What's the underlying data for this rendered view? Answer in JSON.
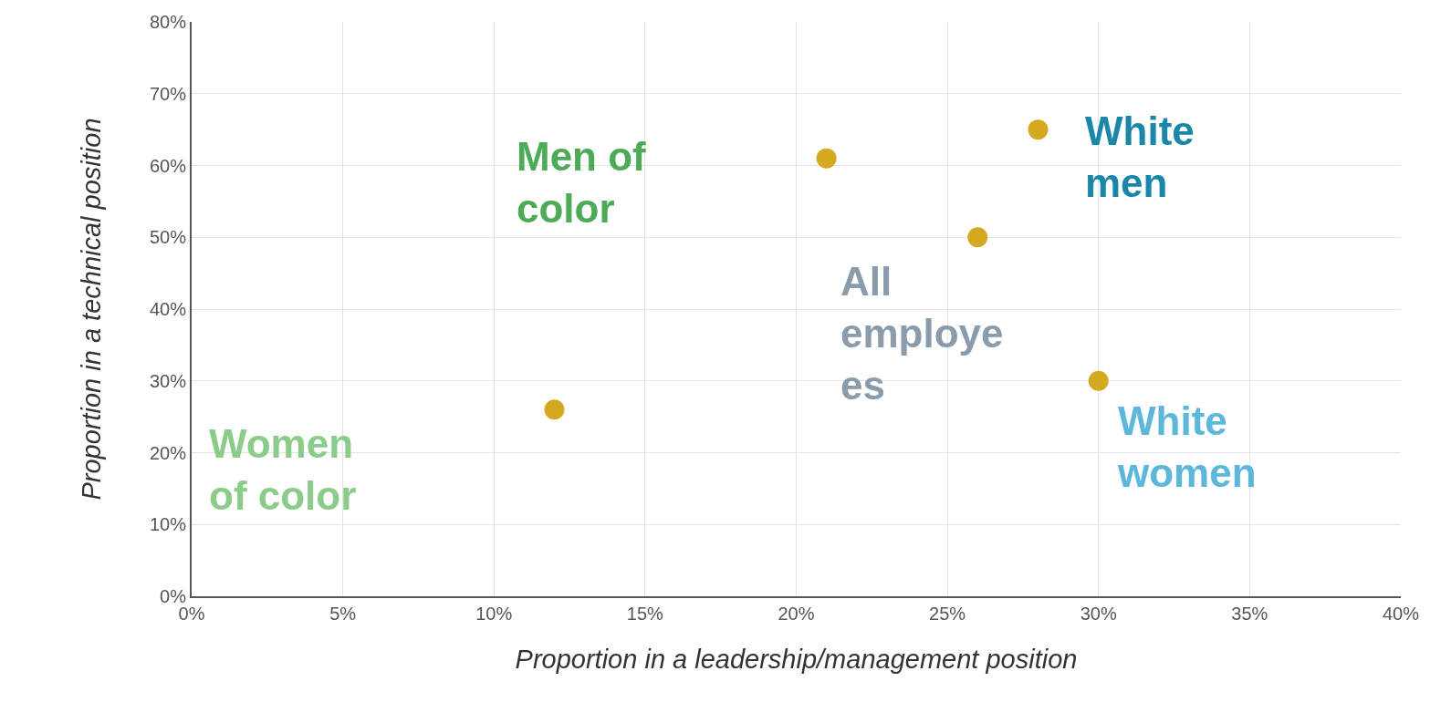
{
  "chart_data": {
    "type": "scatter",
    "xlabel": "Proportion in a leadership/management position",
    "ylabel": "Proportion in a technical position",
    "x": [
      12,
      21,
      26,
      28,
      30
    ],
    "series": [
      {
        "color": "#d4a820",
        "values": [
          26,
          61,
          50,
          65,
          30
        ]
      }
    ],
    "marker": "circle",
    "grid": true,
    "xlim": [
      0,
      40
    ],
    "xticks": [
      {
        "value": 0,
        "label": "0%"
      },
      {
        "value": 5,
        "label": "5%"
      },
      {
        "value": 10,
        "label": "10%"
      },
      {
        "value": 15,
        "label": "15%"
      },
      {
        "value": 20,
        "label": "20%"
      },
      {
        "value": 25,
        "label": "25%"
      },
      {
        "value": 30,
        "label": "30%"
      },
      {
        "value": 35,
        "label": "35%"
      },
      {
        "value": 40,
        "label": "40%"
      }
    ],
    "ylim": [
      0,
      80
    ],
    "yticks": [
      {
        "value": 0,
        "label": "0%"
      },
      {
        "value": 10,
        "label": "10%"
      },
      {
        "value": 20,
        "label": "20%"
      },
      {
        "value": 30,
        "label": "30%"
      },
      {
        "value": 40,
        "label": "40%"
      },
      {
        "value": 50,
        "label": "50%"
      },
      {
        "value": 60,
        "label": "60%"
      },
      {
        "value": 70,
        "label": "70%"
      },
      {
        "value": 80,
        "label": "80%"
      }
    ],
    "annotations": [
      "Men of\ncolor",
      {
        "text": "White\nmen",
        "x": 28,
        "y": 65
      },
      {
        "text": "All\nemploye\nes",
        "x": 26,
        "y": 50
      },
      {
        "text": "White\nwomen",
        "x": 30,
        "y": 30
      },
      "Women\nof color"
    ]
  }
}
